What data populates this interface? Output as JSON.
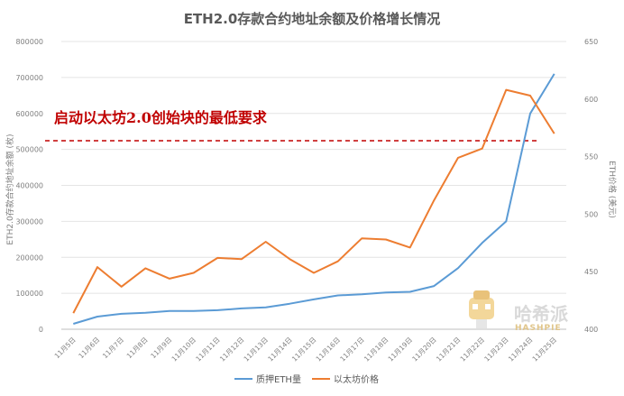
{
  "chart_data": {
    "type": "line",
    "title": "ETH2.0存款合约地址余额及价格增长情况",
    "categories": [
      "11月5日",
      "11月6日",
      "11月7日",
      "11月8日",
      "11月9日",
      "11月10日",
      "11月11日",
      "11月12日",
      "11月13日",
      "11月14日",
      "11月15日",
      "11月16日",
      "11月17日",
      "11月18日",
      "11月19日",
      "11月20日",
      "11月21日",
      "11月22日",
      "11月23日",
      "11月24日",
      "11月25日"
    ],
    "ylabel": "ETH2.0存款合约地址余额 (枚)",
    "y2label": "ETH价格 (美元)",
    "ylim": [
      0,
      800000
    ],
    "y2lim": [
      400,
      650
    ],
    "yticks": [
      "0",
      "100000",
      "200000",
      "300000",
      "400000",
      "500000",
      "600000",
      "700000",
      "800000"
    ],
    "y2ticks": [
      "400",
      "450",
      "500",
      "550",
      "600",
      "650"
    ],
    "grid": true,
    "legend_position": "bottom",
    "series": [
      {
        "name": "质押ETH量",
        "axis": "left",
        "color": "#5b9bd5",
        "values": [
          15000,
          35000,
          43000,
          46000,
          51000,
          51000,
          53000,
          58000,
          61000,
          71000,
          83000,
          94000,
          97000,
          102000,
          104000,
          120000,
          170000,
          240000,
          300000,
          600000,
          710000
        ]
      },
      {
        "name": "以太坊价格",
        "axis": "right",
        "color": "#ed7d31",
        "values": [
          414,
          454,
          437,
          453,
          444,
          449,
          462,
          461,
          476,
          461,
          449,
          459,
          479,
          478,
          471,
          512,
          549,
          557,
          608,
          603,
          570
        ]
      }
    ],
    "annotation": {
      "text": "启动以太坊2.0创始块的最低要求",
      "value": 524288,
      "color": "#c00000"
    }
  },
  "watermark": {
    "text": "哈希派",
    "sub": "HASHPIE"
  }
}
